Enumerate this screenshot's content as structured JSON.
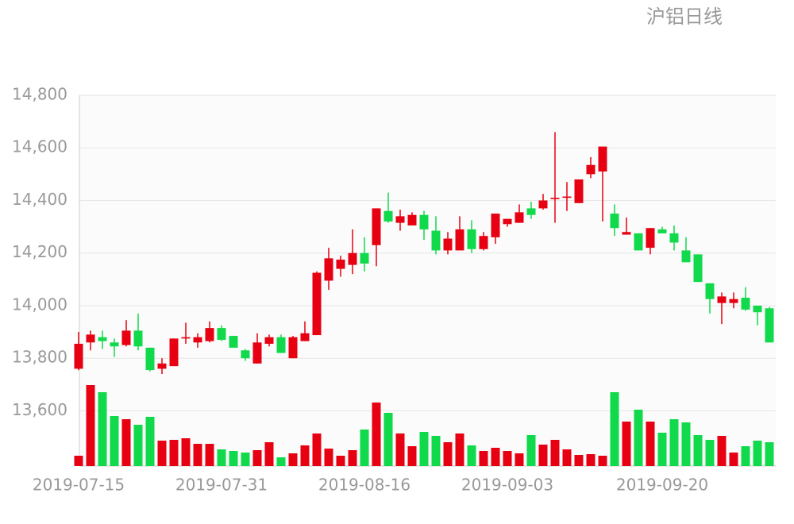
{
  "chart_data": {
    "type": "candlestick",
    "title": "沪铝日线",
    "categories": [
      "2019-07-15",
      null,
      null,
      null,
      null,
      null,
      null,
      null,
      null,
      null,
      null,
      null,
      "2019-07-31",
      null,
      null,
      null,
      null,
      null,
      null,
      null,
      null,
      null,
      null,
      null,
      "2019-08-16",
      null,
      null,
      null,
      null,
      null,
      null,
      null,
      null,
      null,
      null,
      null,
      "2019-09-03",
      null,
      null,
      null,
      null,
      null,
      null,
      null,
      null,
      null,
      null,
      null,
      null,
      "2019-09-20",
      null,
      null,
      null,
      null,
      null,
      null,
      null,
      null,
      null
    ],
    "open": [
      13760,
      13860,
      13880,
      13860,
      13850,
      13905,
      13840,
      13760,
      13770,
      13875,
      13860,
      13865,
      13915,
      13885,
      13830,
      13780,
      13855,
      13880,
      13800,
      13865,
      13888,
      14095,
      14140,
      14155,
      14200,
      14230,
      14360,
      14315,
      14305,
      14345,
      14285,
      14210,
      14210,
      14290,
      14215,
      14260,
      14310,
      14315,
      14370,
      14370,
      14405,
      14410,
      14390,
      14500,
      14510,
      14350,
      14270,
      14275,
      14220,
      14290,
      14275,
      14210,
      14195,
      14085,
      14010,
      14010,
      14030,
      14000,
      13990
    ],
    "high": [
      13900,
      13905,
      13905,
      13875,
      13945,
      13970,
      13840,
      13800,
      13875,
      13935,
      13895,
      13940,
      13925,
      13885,
      13835,
      13895,
      13890,
      13890,
      13885,
      13940,
      14130,
      14220,
      14190,
      14290,
      14260,
      14370,
      14430,
      14365,
      14355,
      14360,
      14340,
      14280,
      14340,
      14325,
      14280,
      14350,
      14330,
      14385,
      14395,
      14425,
      14660,
      14470,
      14480,
      14565,
      14605,
      14385,
      14335,
      14275,
      14295,
      14300,
      14305,
      14260,
      14195,
      14085,
      14050,
      14050,
      14070,
      14000,
      13995
    ],
    "low": [
      13755,
      13830,
      13835,
      13805,
      13845,
      13830,
      13750,
      13740,
      13770,
      13855,
      13840,
      13860,
      13865,
      13840,
      13790,
      13780,
      13845,
      13820,
      13800,
      13865,
      13888,
      14060,
      14110,
      14120,
      14130,
      14150,
      14315,
      14285,
      14305,
      14250,
      14195,
      14195,
      14210,
      14200,
      14210,
      14235,
      14300,
      14315,
      14330,
      14365,
      14315,
      14360,
      14390,
      14485,
      14320,
      14265,
      14270,
      14210,
      14195,
      14275,
      14210,
      14165,
      14090,
      13970,
      13930,
      13990,
      13980,
      13925,
      13860
    ],
    "close": [
      13855,
      13890,
      13865,
      13845,
      13905,
      13845,
      13755,
      13780,
      13875,
      13880,
      13880,
      13915,
      13870,
      13840,
      13800,
      13860,
      13880,
      13820,
      13880,
      13895,
      14125,
      14180,
      14175,
      14200,
      14160,
      14370,
      14320,
      14340,
      14345,
      14290,
      14210,
      14255,
      14290,
      14215,
      14265,
      14350,
      14330,
      14355,
      14345,
      14400,
      14410,
      14415,
      14480,
      14535,
      14605,
      14295,
      14280,
      14210,
      14295,
      14275,
      14240,
      14165,
      14090,
      14025,
      14035,
      14025,
      13985,
      13975,
      13860
    ],
    "volume": [
      13,
      102,
      93,
      63,
      59,
      52,
      62,
      32,
      33,
      35,
      28,
      28,
      21,
      19,
      17,
      20,
      30,
      11,
      16,
      26,
      41,
      22,
      13,
      20,
      46,
      80,
      67,
      41,
      25,
      43,
      38,
      30,
      41,
      26,
      19,
      23,
      19,
      16,
      39,
      27,
      33,
      21,
      14,
      15,
      13,
      93,
      56,
      71,
      56,
      42,
      59,
      55,
      39,
      33,
      38,
      17,
      25,
      32,
      30
    ],
    "up_color": "#e60012",
    "down_color": "#11d94c",
    "ylim": [
      13390,
      14800
    ],
    "yticks": [
      {
        "value": 13600,
        "label": "13,600"
      },
      {
        "value": 13800,
        "label": "13,800"
      },
      {
        "value": 14000,
        "label": "14,000"
      },
      {
        "value": 14200,
        "label": "14,200"
      },
      {
        "value": 14400,
        "label": "14,400"
      },
      {
        "value": 14600,
        "label": "14,600"
      },
      {
        "value": 14800,
        "label": "14,800"
      }
    ],
    "grid": true
  }
}
